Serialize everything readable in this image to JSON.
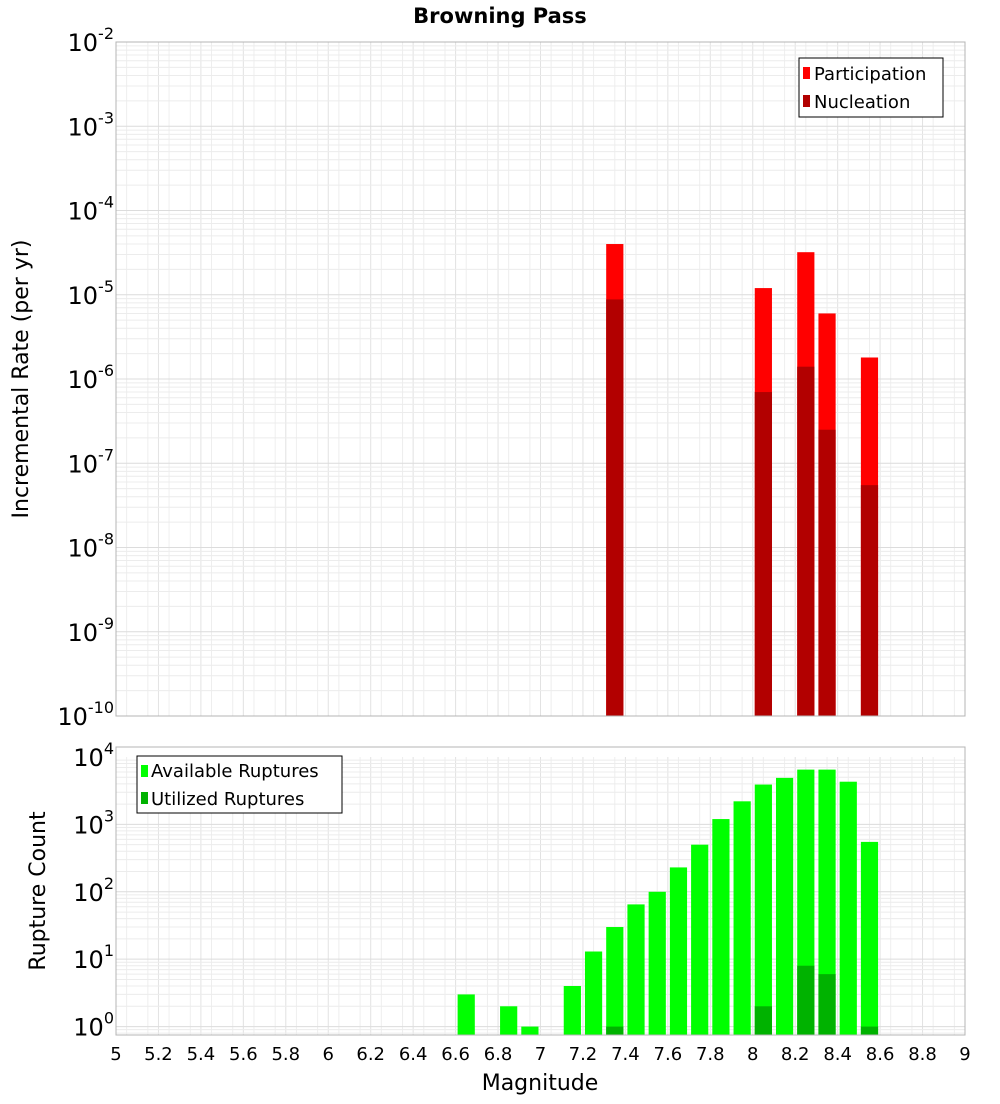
{
  "chart_data": [
    {
      "type": "bar",
      "title": "Browning Pass",
      "xlabel": "Magnitude",
      "ylabel": "Incremental Rate (per yr)",
      "yscale": "log",
      "ylim": [
        1e-10,
        0.01
      ],
      "xlim": [
        5,
        9
      ],
      "grid": true,
      "legend_position": "top-right",
      "ytick_exponents": [
        -10,
        -9,
        -8,
        -7,
        -6,
        -5,
        -4,
        -3,
        -2
      ],
      "series": [
        {
          "name": "Participation",
          "color": "#ff0000",
          "points": [
            {
              "x": 7.35,
              "y": 4e-05
            },
            {
              "x": 8.05,
              "y": 1.2e-05
            },
            {
              "x": 8.25,
              "y": 3.2e-05
            },
            {
              "x": 8.35,
              "y": 6e-06
            },
            {
              "x": 8.55,
              "y": 1.8e-06
            }
          ]
        },
        {
          "name": "Nucleation",
          "color": "#b20000",
          "points": [
            {
              "x": 7.35,
              "y": 8.8e-06
            },
            {
              "x": 8.05,
              "y": 7e-07
            },
            {
              "x": 8.25,
              "y": 1.4e-06
            },
            {
              "x": 8.35,
              "y": 2.5e-07
            },
            {
              "x": 8.55,
              "y": 5.5e-08
            }
          ]
        }
      ]
    },
    {
      "type": "bar",
      "xlabel": "Magnitude",
      "ylabel": "Rupture Count",
      "yscale": "log",
      "ylim": [
        0.75,
        10000
      ],
      "xlim": [
        5,
        9
      ],
      "grid": true,
      "legend_position": "top-left",
      "ytick_exponents": [
        0,
        1,
        2,
        3,
        4
      ],
      "xticks": [
        "5",
        "5.2",
        "5.4",
        "5.6",
        "5.8",
        "6",
        "6.2",
        "6.4",
        "6.6",
        "6.8",
        "7",
        "7.2",
        "7.4",
        "7.6",
        "7.8",
        "8",
        "8.2",
        "8.4",
        "8.6",
        "8.8",
        "9"
      ],
      "series": [
        {
          "name": "Available Ruptures",
          "color": "#00ff00",
          "points": [
            {
              "x": 6.65,
              "y": 3
            },
            {
              "x": 6.85,
              "y": 2
            },
            {
              "x": 6.95,
              "y": 1
            },
            {
              "x": 7.15,
              "y": 4
            },
            {
              "x": 7.25,
              "y": 13
            },
            {
              "x": 7.35,
              "y": 30
            },
            {
              "x": 7.45,
              "y": 65
            },
            {
              "x": 7.55,
              "y": 100
            },
            {
              "x": 7.65,
              "y": 230
            },
            {
              "x": 7.75,
              "y": 500
            },
            {
              "x": 7.85,
              "y": 1200
            },
            {
              "x": 7.95,
              "y": 2200
            },
            {
              "x": 8.05,
              "y": 3900
            },
            {
              "x": 8.15,
              "y": 4900
            },
            {
              "x": 8.25,
              "y": 6500
            },
            {
              "x": 8.35,
              "y": 6500
            },
            {
              "x": 8.45,
              "y": 4300
            },
            {
              "x": 8.55,
              "y": 550
            }
          ]
        },
        {
          "name": "Utilized Ruptures",
          "color": "#00b200",
          "points": [
            {
              "x": 7.35,
              "y": 1
            },
            {
              "x": 8.05,
              "y": 2
            },
            {
              "x": 8.25,
              "y": 8
            },
            {
              "x": 8.35,
              "y": 6
            },
            {
              "x": 8.55,
              "y": 1
            }
          ]
        }
      ]
    }
  ]
}
